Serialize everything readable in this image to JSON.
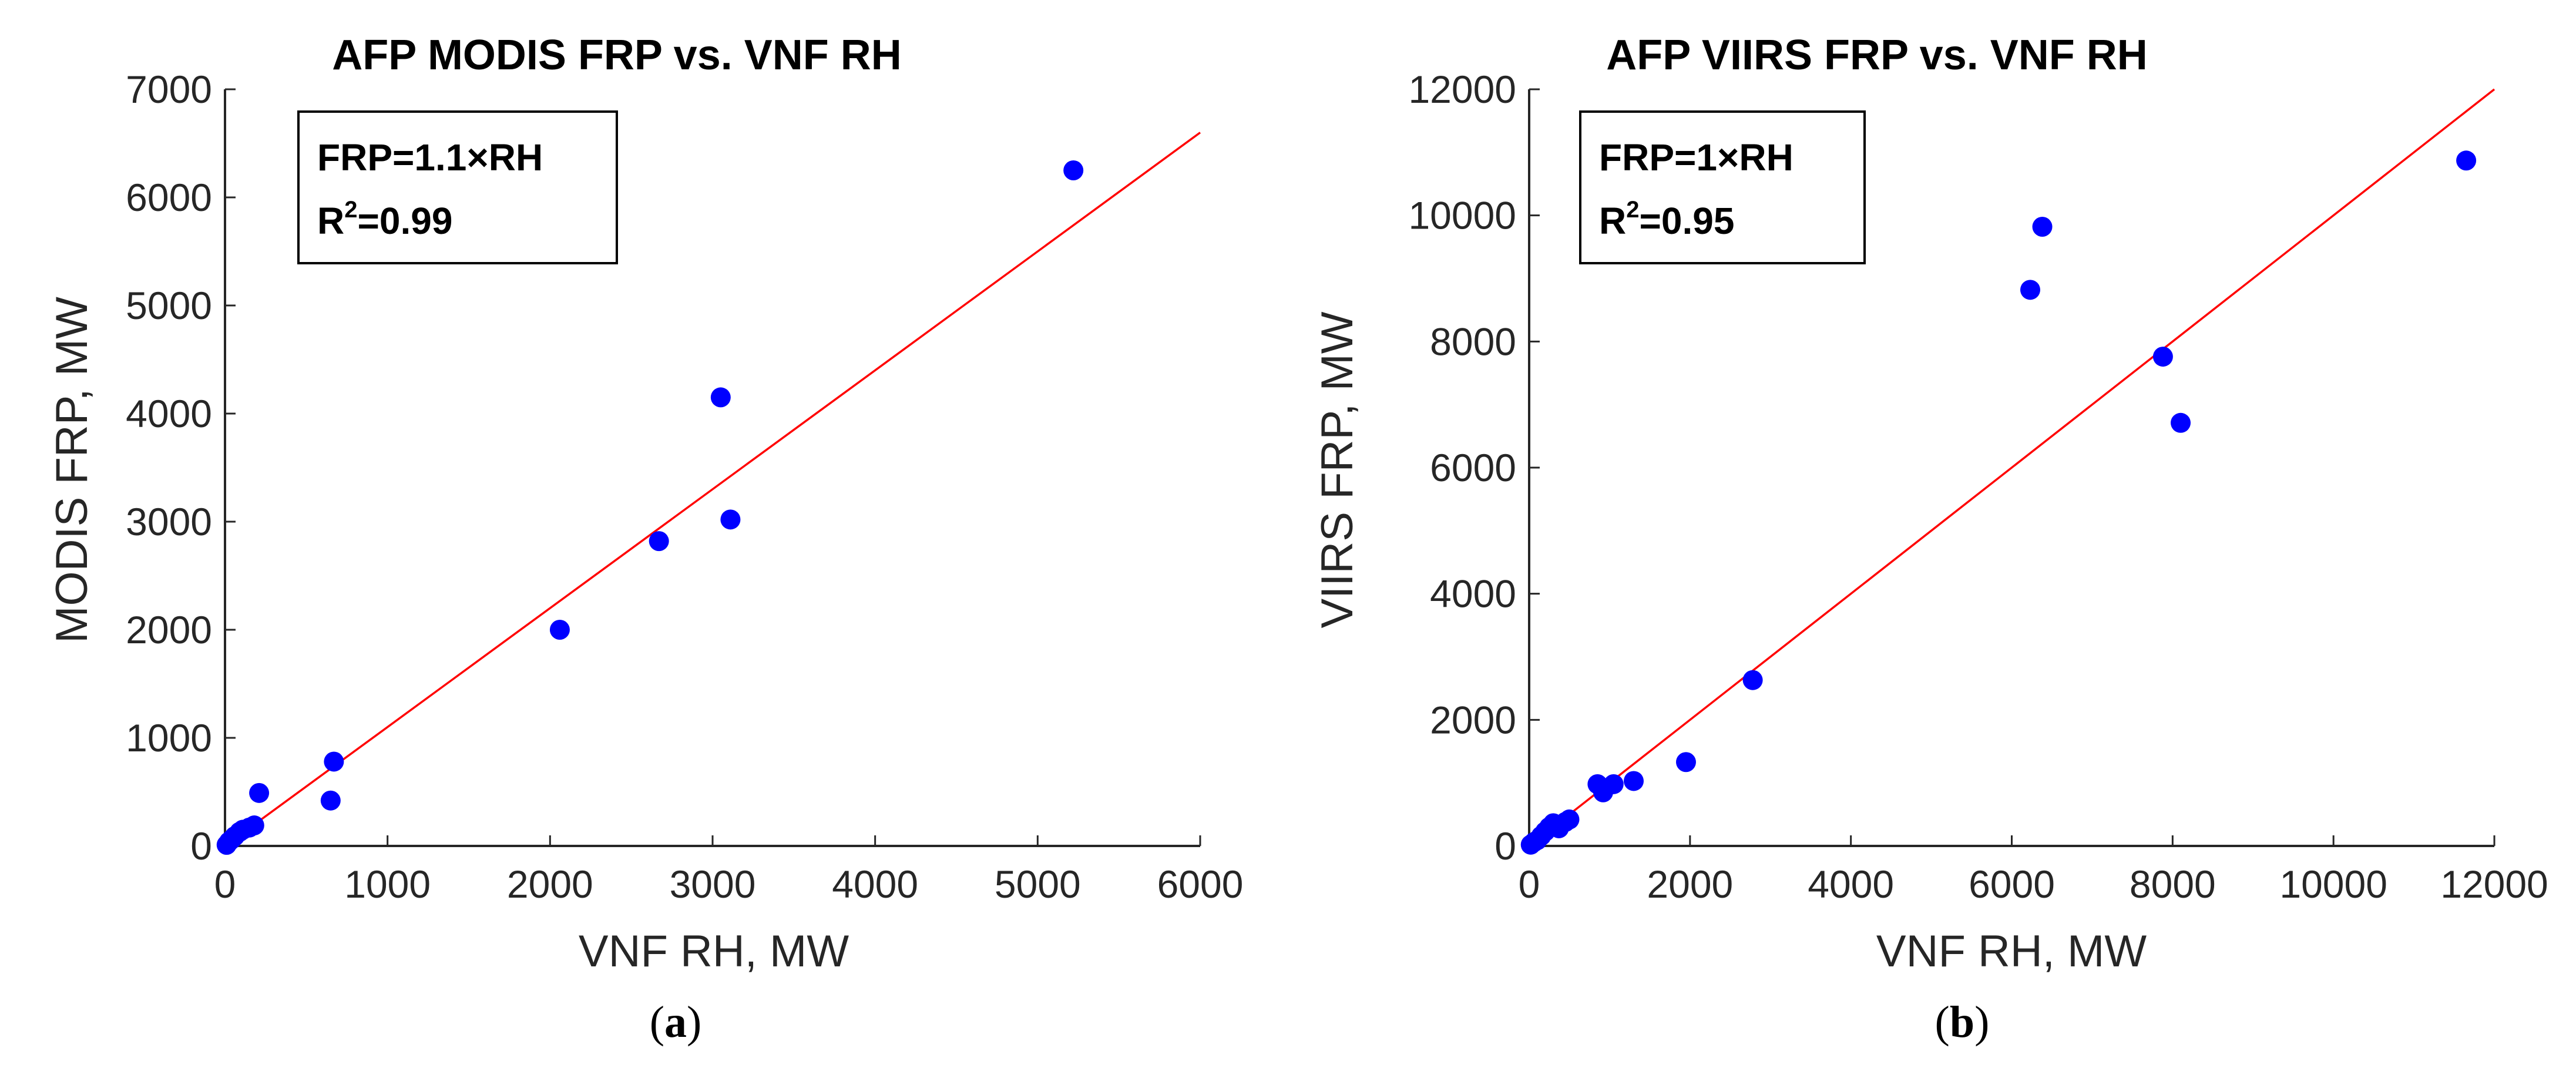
{
  "chart_data": [
    {
      "type": "scatter",
      "title": "AFP MODIS FRP vs. VNF RH",
      "xlabel": "VNF RH, MW",
      "ylabel": "MODIS FRP, MW",
      "xlim": [
        0,
        6000
      ],
      "ylim": [
        0,
        7000
      ],
      "xticks": [
        0,
        1000,
        2000,
        3000,
        4000,
        5000,
        6000
      ],
      "yticks": [
        0,
        1000,
        2000,
        3000,
        4000,
        5000,
        6000,
        7000
      ],
      "xtick_labels": [
        "0",
        "1000",
        "2000",
        "3000",
        "4000",
        "5000",
        "6000"
      ],
      "ytick_labels": [
        "0",
        "1000",
        "2000",
        "3000",
        "4000",
        "5000",
        "6000",
        "7000"
      ],
      "points": [
        {
          "x": 10,
          "y": 10
        },
        {
          "x": 25,
          "y": 40
        },
        {
          "x": 40,
          "y": 60
        },
        {
          "x": 60,
          "y": 90
        },
        {
          "x": 90,
          "y": 130
        },
        {
          "x": 110,
          "y": 150
        },
        {
          "x": 150,
          "y": 170
        },
        {
          "x": 180,
          "y": 190
        },
        {
          "x": 210,
          "y": 490
        },
        {
          "x": 650,
          "y": 420
        },
        {
          "x": 670,
          "y": 780
        },
        {
          "x": 2060,
          "y": 2000
        },
        {
          "x": 2670,
          "y": 2820
        },
        {
          "x": 3050,
          "y": 4150
        },
        {
          "x": 3110,
          "y": 3020
        },
        {
          "x": 5220,
          "y": 6250
        }
      ],
      "fit_line": {
        "slope": 1.1,
        "x_start": 0,
        "x_end": 6000
      },
      "annotation": {
        "line1": "FRP=1.1×RH",
        "r2_base": "R",
        "r2_sup": "2",
        "r2_value": "=0.99"
      },
      "panel_letter": "a",
      "marker_color": "#0000ff",
      "line_color": "#ff0000"
    },
    {
      "type": "scatter",
      "title": "AFP VIIRS FRP vs. VNF RH",
      "xlabel": "VNF RH, MW",
      "ylabel": "VIIRS FRP, MW",
      "xlim": [
        0,
        12000
      ],
      "ylim": [
        0,
        12000
      ],
      "xticks": [
        0,
        2000,
        4000,
        6000,
        8000,
        10000,
        12000
      ],
      "yticks": [
        0,
        2000,
        4000,
        6000,
        8000,
        10000,
        12000
      ],
      "xtick_labels": [
        "0",
        "2000",
        "4000",
        "6000",
        "8000",
        "10000",
        "12000"
      ],
      "ytick_labels": [
        "0",
        "2000",
        "4000",
        "6000",
        "8000",
        "10000",
        "12000"
      ],
      "points": [
        {
          "x": 20,
          "y": 20
        },
        {
          "x": 60,
          "y": 60
        },
        {
          "x": 100,
          "y": 90
        },
        {
          "x": 150,
          "y": 160
        },
        {
          "x": 200,
          "y": 230
        },
        {
          "x": 250,
          "y": 300
        },
        {
          "x": 300,
          "y": 360
        },
        {
          "x": 370,
          "y": 280
        },
        {
          "x": 450,
          "y": 380
        },
        {
          "x": 500,
          "y": 420
        },
        {
          "x": 850,
          "y": 980
        },
        {
          "x": 920,
          "y": 850
        },
        {
          "x": 1050,
          "y": 980
        },
        {
          "x": 1300,
          "y": 1030
        },
        {
          "x": 1950,
          "y": 1330
        },
        {
          "x": 2780,
          "y": 2630
        },
        {
          "x": 6230,
          "y": 8820
        },
        {
          "x": 6380,
          "y": 9820
        },
        {
          "x": 7880,
          "y": 7760
        },
        {
          "x": 8100,
          "y": 6710
        },
        {
          "x": 11650,
          "y": 10870
        }
      ],
      "fit_line": {
        "slope": 1.0,
        "x_start": 0,
        "x_end": 12000
      },
      "annotation": {
        "line1": "FRP=1×RH",
        "r2_base": "R",
        "r2_sup": "2",
        "r2_value": "=0.95"
      },
      "panel_letter": "b",
      "marker_color": "#0000ff",
      "line_color": "#ff0000"
    }
  ],
  "panel_captions": [
    {
      "open": "(",
      "letter": "a",
      "close": ")"
    },
    {
      "open": "(",
      "letter": "b",
      "close": ")"
    }
  ]
}
